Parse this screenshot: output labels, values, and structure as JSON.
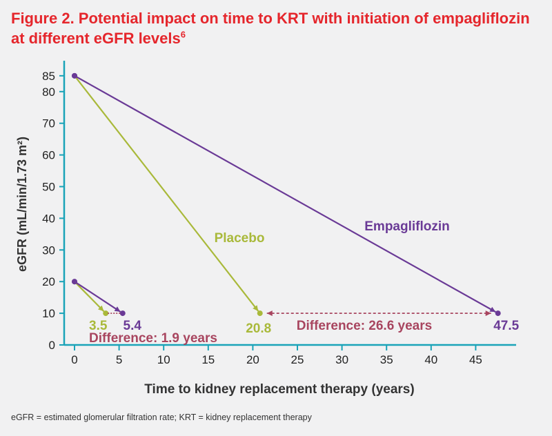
{
  "figure": {
    "title_main": "Figure 2. Potential impact on time to KRT with initiation of empagliflozin at different eGFR levels",
    "title_sup": "6",
    "footnote": "eGFR = estimated glomerular filtration rate; KRT = kidney replacement therapy"
  },
  "chart_data": {
    "type": "line",
    "title": "Figure 2. Potential impact on time to KRT with initiation of empagliflozin at different eGFR levels",
    "xlabel": "Time to kidney replacement therapy (years)",
    "ylabel": "eGFR (mL/min/1.73 m²)",
    "xlim": [
      0,
      50
    ],
    "ylim": [
      0,
      88
    ],
    "xticks": [
      0,
      5,
      10,
      15,
      20,
      25,
      30,
      35,
      40,
      45
    ],
    "yticks": [
      0,
      10,
      20,
      30,
      40,
      50,
      60,
      70,
      80,
      85
    ],
    "grid": false,
    "colors": {
      "placebo": "#a9b93a",
      "empagliflozin": "#6a3a96",
      "difference": "#a8455f",
      "axis": "#1aa3b8"
    },
    "series": [
      {
        "name": "Placebo",
        "segments": [
          {
            "x": [
              0,
              20.8
            ],
            "y": [
              85,
              10
            ]
          },
          {
            "x": [
              0,
              3.5
            ],
            "y": [
              20,
              10
            ]
          }
        ]
      },
      {
        "name": "Empagliflozin",
        "segments": [
          {
            "x": [
              0,
              47.5
            ],
            "y": [
              85,
              10
            ]
          },
          {
            "x": [
              0,
              5.4
            ],
            "y": [
              20,
              10
            ]
          }
        ]
      }
    ],
    "annotations": [
      {
        "text": "3.5",
        "x": 3.5,
        "y": 10,
        "series": "Placebo"
      },
      {
        "text": "5.4",
        "x": 5.4,
        "y": 10,
        "series": "Empagliflozin"
      },
      {
        "text": "20.8",
        "x": 20.8,
        "y": 10,
        "series": "Placebo"
      },
      {
        "text": "47.5",
        "x": 47.5,
        "y": 10,
        "series": "Empagliflozin"
      },
      {
        "text": "Difference: 1.9 years",
        "from": 3.5,
        "to": 5.4,
        "y": 10
      },
      {
        "text": "Difference: 26.6 years",
        "from": 20.8,
        "to": 47.5,
        "y": 10
      }
    ]
  }
}
